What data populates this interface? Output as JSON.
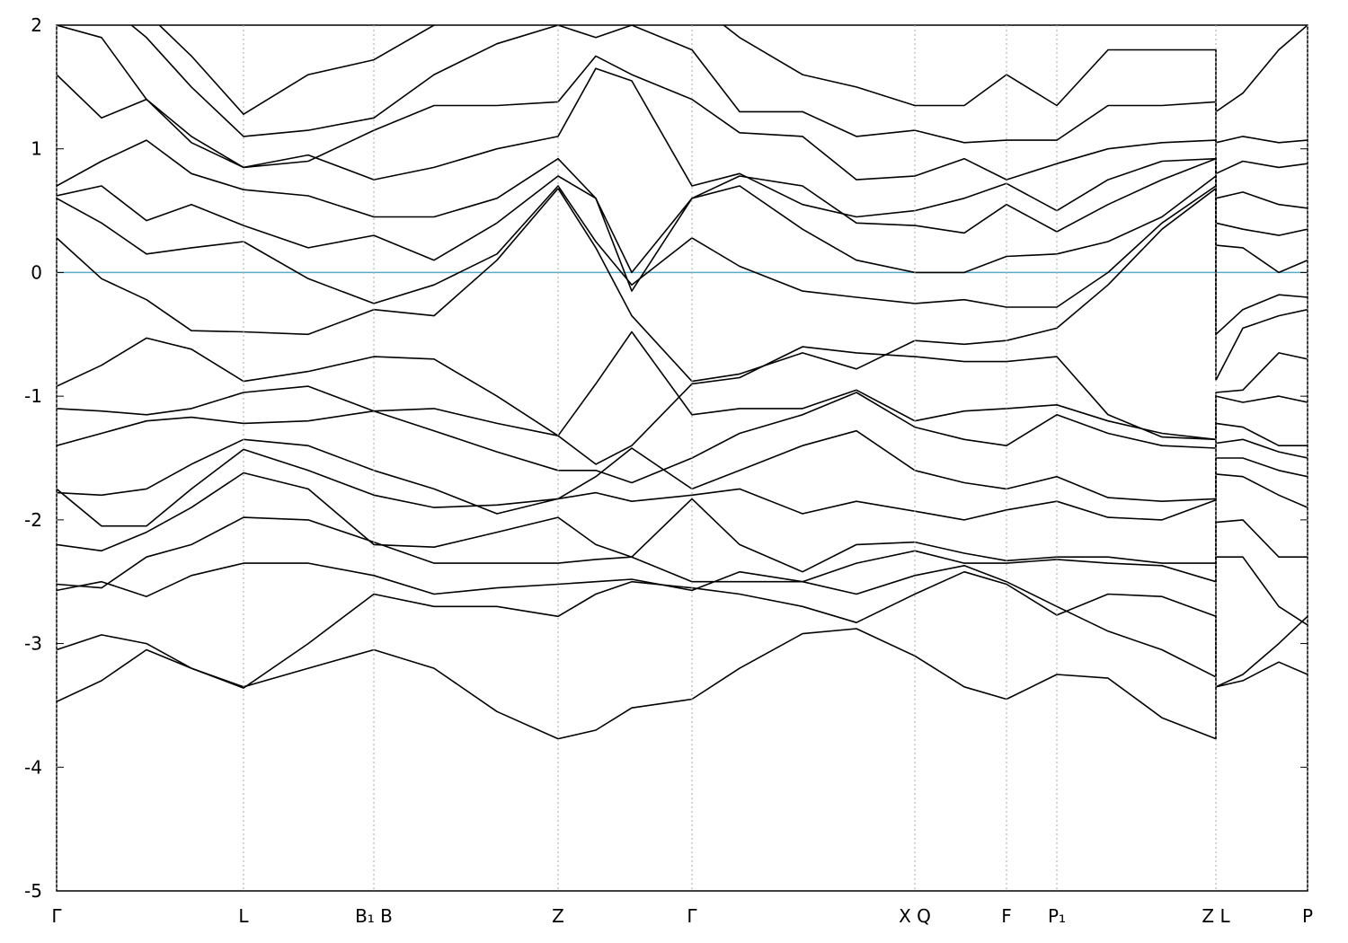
{
  "chart_data": {
    "type": "line",
    "x": [
      0,
      50,
      100,
      150,
      208,
      280,
      353,
      420,
      490,
      558,
      600,
      640,
      707,
      760,
      830,
      890,
      955,
      1010,
      1057,
      1113,
      1170,
      1230,
      1290,
      1290,
      1320,
      1360,
      1392
    ],
    "xlim": [
      0,
      1392
    ],
    "xticks": [
      {
        "value": 0,
        "label": "Γ"
      },
      {
        "value": 208,
        "label": "L"
      },
      {
        "value": 353,
        "label": "B₁ B"
      },
      {
        "value": 558,
        "label": "Z"
      },
      {
        "value": 707,
        "label": "Γ"
      },
      {
        "value": 955,
        "label": "X Q"
      },
      {
        "value": 1057,
        "label": "F"
      },
      {
        "value": 1113,
        "label": "P₁"
      },
      {
        "value": 1290,
        "label": "Z L"
      },
      {
        "value": 1392,
        "label": "P"
      }
    ],
    "ylim": [
      -5,
      2
    ],
    "yticks": [
      -5,
      -4,
      -3,
      -2,
      -1,
      0,
      1,
      2
    ],
    "color": "#000000",
    "fermi_level": 0,
    "fermi_color": "#5aaac8",
    "series": [
      {
        "values": [
          -3.47,
          -3.3,
          -3.05,
          -3.2,
          -3.35,
          -3.2,
          -3.05,
          -3.2,
          -3.55,
          -3.77,
          -3.7,
          -3.52,
          -3.45,
          -3.2,
          -2.92,
          -2.88,
          -3.1,
          -3.35,
          -3.45,
          -3.25,
          -3.28,
          -3.6,
          -3.77,
          -3.35,
          -3.3,
          -3.15,
          -3.25
        ]
      },
      {
        "values": [
          -3.05,
          -2.93,
          -3.0,
          -3.2,
          -3.36,
          -3.0,
          -2.6,
          -2.7,
          -2.7,
          -2.78,
          -2.6,
          -2.5,
          -2.55,
          -2.6,
          -2.7,
          -2.83,
          -2.6,
          -2.42,
          -2.52,
          -2.77,
          -2.6,
          -2.62,
          -2.78,
          -3.35,
          -3.25,
          -3.0,
          -2.78
        ]
      },
      {
        "values": [
          -2.57,
          -2.5,
          -2.62,
          -2.45,
          -2.35,
          -2.35,
          -2.45,
          -2.6,
          -2.55,
          -2.52,
          -2.5,
          -2.48,
          -2.57,
          -2.42,
          -2.5,
          -2.6,
          -2.45,
          -2.37,
          -2.5,
          -2.7,
          -2.9,
          -3.05,
          -3.27,
          -2.3,
          -2.3,
          -2.7,
          -2.85
        ]
      },
      {
        "values": [
          -2.52,
          -2.55,
          -2.3,
          -2.2,
          -1.98,
          -2.0,
          -2.18,
          -2.35,
          -2.35,
          -2.35,
          -2.32,
          -2.3,
          -2.5,
          -2.5,
          -2.5,
          -2.35,
          -2.25,
          -2.35,
          -2.35,
          -2.32,
          -2.35,
          -2.37,
          -2.5,
          -2.02,
          -2.0,
          -2.3,
          -2.3
        ]
      },
      {
        "values": [
          -2.2,
          -2.25,
          -2.1,
          -1.9,
          -1.62,
          -1.75,
          -2.2,
          -2.22,
          -2.1,
          -1.98,
          -2.2,
          -2.3,
          -1.83,
          -2.2,
          -2.42,
          -2.2,
          -2.18,
          -2.27,
          -2.33,
          -2.3,
          -2.3,
          -2.35,
          -2.35,
          -1.63,
          -1.65,
          -1.8,
          -1.9
        ]
      },
      {
        "values": [
          -1.75,
          -2.05,
          -2.05,
          -1.75,
          -1.43,
          -1.6,
          -1.8,
          -1.9,
          -1.88,
          -1.83,
          -1.78,
          -1.85,
          -1.8,
          -1.75,
          -1.95,
          -1.85,
          -1.93,
          -2.0,
          -1.92,
          -1.85,
          -1.98,
          -2.0,
          -1.84,
          -1.5,
          -1.5,
          -1.6,
          -1.65
        ]
      },
      {
        "values": [
          -1.78,
          -1.8,
          -1.75,
          -1.55,
          -1.35,
          -1.4,
          -1.6,
          -1.75,
          -1.95,
          -1.83,
          -1.65,
          -1.42,
          -1.75,
          -1.6,
          -1.4,
          -1.28,
          -1.6,
          -1.7,
          -1.75,
          -1.65,
          -1.82,
          -1.85,
          -1.83,
          -1.38,
          -1.35,
          -1.45,
          -1.5
        ]
      },
      {
        "values": [
          -1.4,
          -1.3,
          -1.2,
          -1.17,
          -1.22,
          -1.2,
          -1.12,
          -1.28,
          -1.45,
          -1.6,
          -1.6,
          -1.7,
          -1.5,
          -1.3,
          -1.15,
          -0.97,
          -1.25,
          -1.35,
          -1.4,
          -1.15,
          -1.3,
          -1.4,
          -1.42,
          -1.22,
          -1.25,
          -1.4,
          -1.4
        ]
      },
      {
        "values": [
          -1.1,
          -1.12,
          -1.15,
          -1.1,
          -0.97,
          -0.92,
          -1.12,
          -1.1,
          -1.22,
          -1.32,
          -0.9,
          -0.48,
          -1.15,
          -1.1,
          -1.1,
          -0.95,
          -1.2,
          -1.12,
          -1.1,
          -1.07,
          -1.2,
          -1.3,
          -1.35,
          -1.0,
          -1.05,
          -1.0,
          -1.05
        ]
      },
      {
        "values": [
          -0.92,
          -0.75,
          -0.53,
          -0.62,
          -0.88,
          -0.8,
          -0.68,
          -0.7,
          -1.0,
          -1.32,
          -1.55,
          -1.4,
          -0.9,
          -0.85,
          -0.6,
          -0.65,
          -0.68,
          -0.72,
          -0.72,
          -0.68,
          -1.15,
          -1.33,
          -1.35,
          -0.97,
          -0.95,
          -0.65,
          -0.7
        ]
      },
      {
        "values": [
          0.28,
          -0.05,
          -0.22,
          -0.47,
          -0.48,
          -0.5,
          -0.3,
          -0.35,
          0.1,
          0.68,
          0.2,
          -0.35,
          -0.88,
          -0.82,
          -0.65,
          -0.78,
          -0.55,
          -0.58,
          -0.55,
          -0.45,
          -0.1,
          0.35,
          0.68,
          -0.87,
          -0.45,
          -0.35,
          -0.3
        ]
      },
      {
        "values": [
          0.6,
          0.4,
          0.15,
          0.2,
          0.25,
          -0.05,
          -0.25,
          -0.1,
          0.15,
          0.7,
          0.25,
          -0.1,
          0.28,
          0.05,
          -0.15,
          -0.2,
          -0.25,
          -0.22,
          -0.28,
          -0.28,
          0.0,
          0.4,
          0.7,
          -0.5,
          -0.3,
          -0.18,
          -0.2
        ]
      },
      {
        "values": [
          0.62,
          0.7,
          0.42,
          0.55,
          0.38,
          0.2,
          0.3,
          0.1,
          0.4,
          0.78,
          0.6,
          0.0,
          0.6,
          0.7,
          0.35,
          0.1,
          0.0,
          0.0,
          0.13,
          0.15,
          0.25,
          0.45,
          0.78,
          0.22,
          0.2,
          0.0,
          0.1
        ]
      },
      {
        "values": [
          0.7,
          0.9,
          1.07,
          0.8,
          0.67,
          0.62,
          0.45,
          0.45,
          0.6,
          0.92,
          0.6,
          -0.15,
          0.6,
          0.78,
          0.7,
          0.4,
          0.38,
          0.32,
          0.55,
          0.33,
          0.55,
          0.75,
          0.92,
          0.4,
          0.35,
          0.3,
          0.35
        ]
      },
      {
        "values": [
          1.6,
          1.25,
          1.4,
          1.1,
          0.85,
          0.95,
          0.75,
          0.85,
          1.0,
          1.1,
          1.65,
          1.55,
          0.7,
          0.8,
          0.55,
          0.45,
          0.5,
          0.6,
          0.72,
          0.5,
          0.75,
          0.9,
          0.92,
          0.6,
          0.65,
          0.55,
          0.52
        ]
      },
      {
        "values": [
          2.0,
          1.9,
          1.4,
          1.05,
          0.85,
          0.9,
          1.15,
          1.35,
          1.35,
          1.38,
          1.75,
          1.6,
          1.4,
          1.13,
          1.1,
          0.75,
          0.78,
          0.92,
          0.75,
          0.88,
          1.0,
          1.05,
          1.07,
          0.8,
          0.9,
          0.85,
          0.88
        ]
      },
      {
        "values": [
          2.3,
          2.2,
          1.9,
          1.5,
          1.1,
          1.15,
          1.25,
          1.6,
          1.85,
          2.0,
          1.9,
          2.0,
          1.8,
          1.3,
          1.3,
          1.1,
          1.15,
          1.05,
          1.07,
          1.07,
          1.35,
          1.35,
          1.38,
          1.05,
          1.1,
          1.05,
          1.07
        ]
      },
      {
        "values": [
          2.4,
          2.3,
          2.1,
          1.75,
          1.28,
          1.6,
          1.72,
          2.0,
          2.1,
          2.2,
          2.3,
          2.2,
          2.2,
          1.9,
          1.6,
          1.5,
          1.35,
          1.35,
          1.6,
          1.35,
          1.8,
          1.8,
          1.8,
          1.3,
          1.45,
          1.8,
          2.0
        ]
      }
    ]
  }
}
